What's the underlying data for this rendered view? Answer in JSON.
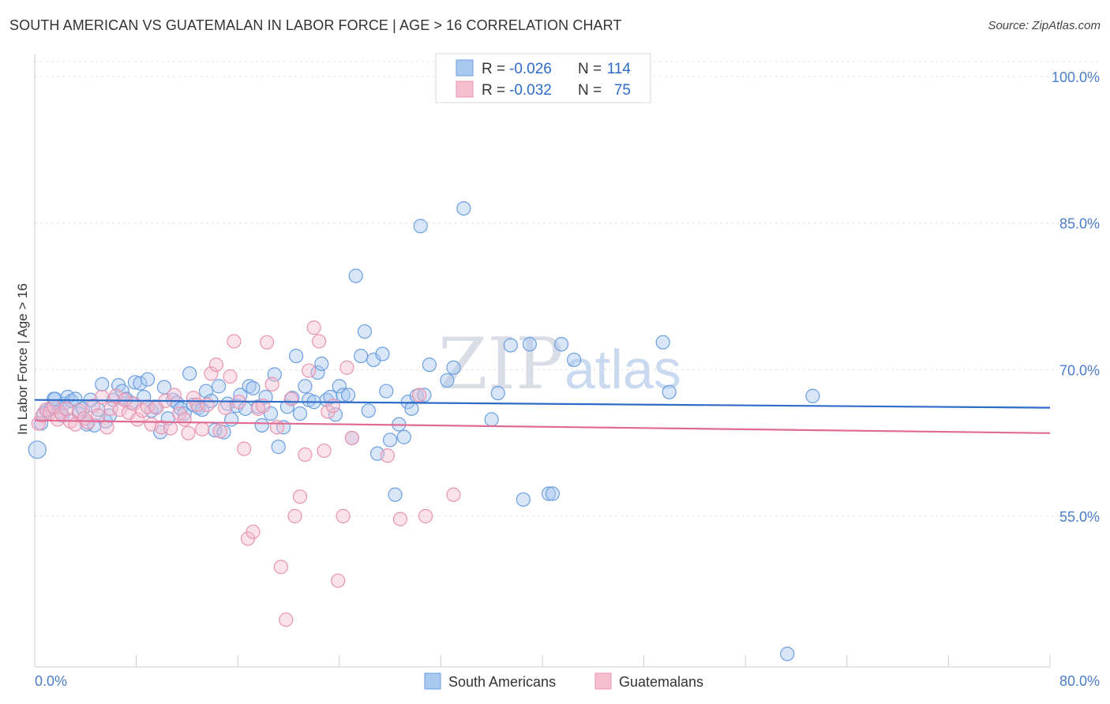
{
  "title": "SOUTH AMERICAN VS GUATEMALAN IN LABOR FORCE | AGE > 16 CORRELATION CHART",
  "source": "Source: ZipAtlas.com",
  "watermark": {
    "zip": "ZIP",
    "atlas": "atlas"
  },
  "colors": {
    "blue_fill": "#a9c8f0",
    "blue_stroke": "#6a9fe0",
    "blue_line": "#2e6bc9",
    "pink_fill": "#f5bfd0",
    "pink_stroke": "#e893b0",
    "pink_line": "#e06a92",
    "tick_text": "#4a7dc9",
    "grid": "#e0e0e0"
  },
  "legend": {
    "rows": [
      {
        "r_label": "R =",
        "r_value": "-0.026",
        "n_label": "N =",
        "n_value": "114"
      },
      {
        "r_label": "R =",
        "r_value": "-0.032",
        "n_label": "N =",
        "n_value": "75"
      }
    ]
  },
  "chart_data": {
    "type": "scatter",
    "title": "SOUTH AMERICAN VS GUATEMALAN IN LABOR FORCE | AGE > 16 CORRELATION CHART",
    "xlabel": "",
    "ylabel": "In Labor Force | Age > 16",
    "xlim": [
      0,
      80
    ],
    "ylim": [
      40,
      102
    ],
    "x_tick_labels": [
      "0.0%",
      "80.0%"
    ],
    "y_ticks": [
      55,
      70,
      85,
      100
    ],
    "y_tick_labels": [
      "55.0%",
      "70.0%",
      "85.0%",
      "100.0%"
    ],
    "legend_position": "top-center",
    "series": [
      {
        "name": "South Americans",
        "trend": {
          "x": [
            0,
            80
          ],
          "y": [
            66.9,
            66.1
          ]
        },
        "points": [
          [
            0.2,
            61.8
          ],
          [
            0.5,
            64.5
          ],
          [
            0.7,
            65.5
          ],
          [
            1.0,
            65.8
          ],
          [
            1.3,
            66.0
          ],
          [
            1.5,
            67.0
          ],
          [
            1.8,
            66.2
          ],
          [
            2.0,
            65.7
          ],
          [
            2.3,
            66.5
          ],
          [
            2.6,
            67.2
          ],
          [
            2.9,
            66.8
          ],
          [
            3.2,
            67.0
          ],
          [
            3.5,
            65.5
          ],
          [
            3.8,
            66.0
          ],
          [
            4.1,
            64.4
          ],
          [
            4.4,
            66.9
          ],
          [
            4.7,
            64.3
          ],
          [
            5.0,
            65.9
          ],
          [
            5.3,
            68.5
          ],
          [
            5.6,
            64.7
          ],
          [
            5.9,
            65.3
          ],
          [
            6.2,
            66.9
          ],
          [
            6.6,
            68.4
          ],
          [
            6.9,
            67.8
          ],
          [
            7.2,
            67.0
          ],
          [
            7.6,
            66.6
          ],
          [
            7.9,
            68.7
          ],
          [
            8.3,
            68.6
          ],
          [
            8.6,
            67.2
          ],
          [
            8.9,
            69.0
          ],
          [
            9.2,
            65.8
          ],
          [
            9.5,
            66.2
          ],
          [
            9.9,
            63.6
          ],
          [
            10.2,
            68.2
          ],
          [
            10.5,
            65.0
          ],
          [
            10.9,
            66.9
          ],
          [
            11.2,
            66.6
          ],
          [
            11.5,
            66.0
          ],
          [
            11.8,
            65.5
          ],
          [
            12.2,
            69.6
          ],
          [
            12.5,
            66.4
          ],
          [
            12.9,
            66.1
          ],
          [
            13.2,
            65.9
          ],
          [
            13.5,
            67.8
          ],
          [
            13.9,
            66.8
          ],
          [
            14.2,
            63.8
          ],
          [
            14.5,
            68.3
          ],
          [
            14.9,
            63.6
          ],
          [
            15.2,
            66.5
          ],
          [
            15.5,
            64.9
          ],
          [
            15.9,
            66.3
          ],
          [
            16.2,
            67.4
          ],
          [
            16.6,
            66.0
          ],
          [
            16.9,
            68.3
          ],
          [
            17.2,
            68.1
          ],
          [
            17.6,
            66.2
          ],
          [
            17.9,
            64.3
          ],
          [
            18.2,
            67.2
          ],
          [
            18.6,
            65.5
          ],
          [
            18.9,
            69.5
          ],
          [
            19.2,
            62.1
          ],
          [
            19.6,
            64.1
          ],
          [
            19.9,
            66.2
          ],
          [
            20.3,
            67.1
          ],
          [
            20.6,
            71.4
          ],
          [
            20.9,
            65.5
          ],
          [
            21.3,
            68.3
          ],
          [
            21.6,
            66.9
          ],
          [
            22.0,
            66.7
          ],
          [
            22.3,
            69.7
          ],
          [
            22.6,
            70.6
          ],
          [
            23.0,
            66.9
          ],
          [
            23.3,
            67.2
          ],
          [
            23.7,
            65.4
          ],
          [
            24.0,
            68.3
          ],
          [
            24.3,
            67.4
          ],
          [
            24.7,
            67.4
          ],
          [
            25.0,
            63.0
          ],
          [
            25.3,
            79.6
          ],
          [
            25.7,
            71.4
          ],
          [
            26.0,
            73.9
          ],
          [
            26.3,
            65.8
          ],
          [
            26.7,
            71.0
          ],
          [
            27.0,
            61.4
          ],
          [
            27.4,
            71.6
          ],
          [
            27.7,
            67.8
          ],
          [
            28.0,
            62.8
          ],
          [
            28.4,
            57.2
          ],
          [
            28.7,
            64.4
          ],
          [
            29.1,
            63.1
          ],
          [
            29.4,
            66.7
          ],
          [
            29.7,
            66.0
          ],
          [
            30.1,
            67.3
          ],
          [
            30.4,
            84.7
          ],
          [
            30.7,
            67.4
          ],
          [
            31.1,
            70.5
          ],
          [
            32.5,
            68.9
          ],
          [
            33.0,
            70.2
          ],
          [
            33.8,
            86.5
          ],
          [
            36.0,
            64.9
          ],
          [
            36.5,
            67.6
          ],
          [
            37.5,
            72.5
          ],
          [
            38.5,
            56.7
          ],
          [
            39.0,
            72.6
          ],
          [
            40.5,
            57.3
          ],
          [
            40.8,
            57.3
          ],
          [
            41.5,
            72.6
          ],
          [
            42.5,
            71.0
          ],
          [
            49.5,
            72.8
          ],
          [
            50.0,
            67.7
          ],
          [
            59.3,
            40.9
          ],
          [
            61.3,
            67.3
          ],
          [
            1.6,
            67.0
          ],
          [
            2.2,
            65.3
          ]
        ]
      },
      {
        "name": "Guatemalans",
        "trend": {
          "x": [
            0,
            80
          ],
          "y": [
            64.8,
            63.5
          ]
        },
        "points": [
          [
            0.3,
            64.5
          ],
          [
            0.6,
            65.3
          ],
          [
            0.9,
            65.9
          ],
          [
            1.2,
            65.6
          ],
          [
            1.5,
            66.2
          ],
          [
            1.8,
            64.9
          ],
          [
            2.1,
            65.5
          ],
          [
            2.5,
            66.0
          ],
          [
            2.8,
            64.7
          ],
          [
            3.2,
            64.4
          ],
          [
            3.5,
            65.8
          ],
          [
            3.9,
            65.0
          ],
          [
            4.2,
            64.6
          ],
          [
            4.6,
            66.3
          ],
          [
            5.0,
            65.3
          ],
          [
            5.3,
            67.2
          ],
          [
            5.7,
            64.1
          ],
          [
            6.0,
            66.0
          ],
          [
            6.4,
            67.3
          ],
          [
            6.7,
            65.9
          ],
          [
            7.1,
            66.9
          ],
          [
            7.4,
            65.6
          ],
          [
            7.8,
            66.5
          ],
          [
            8.1,
            64.9
          ],
          [
            8.5,
            65.8
          ],
          [
            8.9,
            66.2
          ],
          [
            9.2,
            64.4
          ],
          [
            9.6,
            66.1
          ],
          [
            10.0,
            64.1
          ],
          [
            10.3,
            66.8
          ],
          [
            10.7,
            64.0
          ],
          [
            11.0,
            67.4
          ],
          [
            11.4,
            65.5
          ],
          [
            11.8,
            64.9
          ],
          [
            12.1,
            63.5
          ],
          [
            12.5,
            67.1
          ],
          [
            12.8,
            66.4
          ],
          [
            13.2,
            63.9
          ],
          [
            13.6,
            66.4
          ],
          [
            13.9,
            69.6
          ],
          [
            14.3,
            70.5
          ],
          [
            14.6,
            63.7
          ],
          [
            15.0,
            66.1
          ],
          [
            15.4,
            69.3
          ],
          [
            15.7,
            72.9
          ],
          [
            16.1,
            66.7
          ],
          [
            16.5,
            61.9
          ],
          [
            16.8,
            52.7
          ],
          [
            17.2,
            53.4
          ],
          [
            17.6,
            66.0
          ],
          [
            18.0,
            66.3
          ],
          [
            18.3,
            72.8
          ],
          [
            18.7,
            68.5
          ],
          [
            19.1,
            64.1
          ],
          [
            19.4,
            49.8
          ],
          [
            19.8,
            44.4
          ],
          [
            20.2,
            67.0
          ],
          [
            20.5,
            55.0
          ],
          [
            20.9,
            57.0
          ],
          [
            21.3,
            61.3
          ],
          [
            21.6,
            69.9
          ],
          [
            22.0,
            74.3
          ],
          [
            22.4,
            72.9
          ],
          [
            22.8,
            61.7
          ],
          [
            23.1,
            65.7
          ],
          [
            23.5,
            66.3
          ],
          [
            23.9,
            48.4
          ],
          [
            24.3,
            55.0
          ],
          [
            24.6,
            70.2
          ],
          [
            25.0,
            63.0
          ],
          [
            27.8,
            61.2
          ],
          [
            28.8,
            54.7
          ],
          [
            30.3,
            67.4
          ],
          [
            30.8,
            55.0
          ],
          [
            33.0,
            57.2
          ]
        ]
      }
    ]
  },
  "bottom_legend": {
    "south": "South Americans",
    "guat": "Guatemalans"
  }
}
